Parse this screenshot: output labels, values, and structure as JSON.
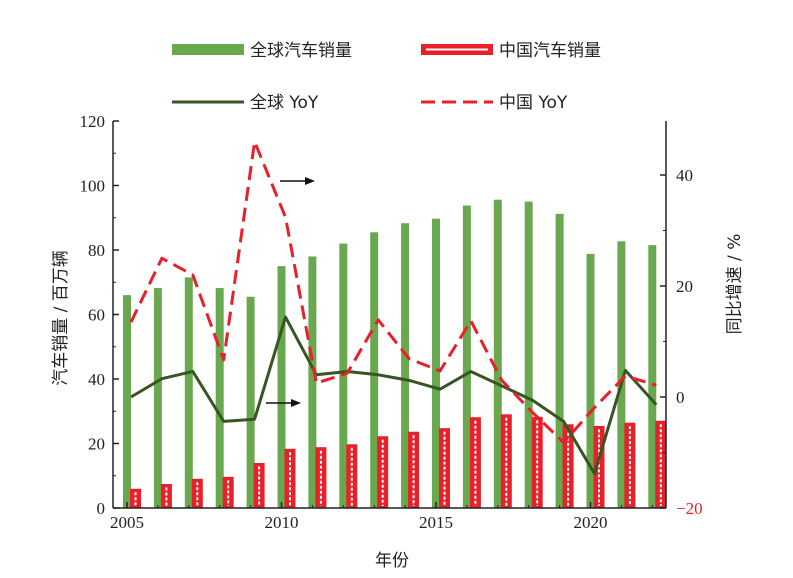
{
  "chart_data": {
    "type": "bar+line",
    "categories": [
      2005,
      2006,
      2007,
      2008,
      2009,
      2010,
      2011,
      2012,
      2013,
      2014,
      2015,
      2016,
      2017,
      2018,
      2019,
      2020,
      2021,
      2022
    ],
    "series": [
      {
        "name": "全球汽车销量",
        "type": "bar",
        "axis": "left",
        "color": "#6aa84f",
        "values": [
          66.0,
          68.2,
          71.5,
          68.2,
          65.5,
          75.0,
          78.0,
          82.0,
          85.5,
          88.3,
          89.7,
          93.8,
          95.6,
          95.0,
          91.2,
          78.8,
          82.7,
          81.5
        ]
      },
      {
        "name": "中国汽车销量",
        "type": "bar",
        "axis": "left",
        "color": "#e8202a",
        "values": [
          5.8,
          7.3,
          8.9,
          9.5,
          13.8,
          18.2,
          18.7,
          19.6,
          22.1,
          23.5,
          24.6,
          28.0,
          28.9,
          28.1,
          25.8,
          25.3,
          26.3,
          26.9
        ]
      },
      {
        "name": "全球 YoY",
        "type": "line",
        "axis": "right",
        "color": "#375623",
        "values": [
          0.0,
          3.3,
          4.6,
          -4.4,
          -4.0,
          14.4,
          4.0,
          4.6,
          4.0,
          3.0,
          1.4,
          4.6,
          2.0,
          -0.6,
          -4.4,
          -13.8,
          4.8,
          -1.4
        ]
      },
      {
        "name": "中国 YoY",
        "type": "line",
        "axis": "right",
        "color": "#e8202a",
        "dash": true,
        "values": [
          13.5,
          25.0,
          22.0,
          6.7,
          46.0,
          32.4,
          2.5,
          4.3,
          13.9,
          6.9,
          4.7,
          13.7,
          3.0,
          -2.8,
          -8.2,
          -1.9,
          3.8,
          2.1
        ]
      }
    ],
    "xlabel": "年份",
    "ylabel": "汽车销量 / 百万辆",
    "y2label": "同比增速 / %",
    "ylim": [
      0,
      120
    ],
    "y2lim": [
      -20,
      50
    ],
    "x_ticks": [
      2005,
      2010,
      2015,
      2020
    ],
    "y_ticks": [
      0,
      20,
      40,
      60,
      80,
      100,
      120
    ],
    "y2_ticks": [
      -20,
      0,
      20,
      40
    ],
    "right_axis_accent_tick": -20,
    "right_axis_accent_color": "#e8202a",
    "legend": [
      {
        "label": "全球汽车销量",
        "style": "green-bar"
      },
      {
        "label": "中国汽车销量",
        "style": "red-bar"
      },
      {
        "label": "全球 YoY",
        "style": "dark-green-line"
      },
      {
        "label": "中国 YoY",
        "style": "red-dashed-line"
      }
    ],
    "legend_position": "top"
  }
}
